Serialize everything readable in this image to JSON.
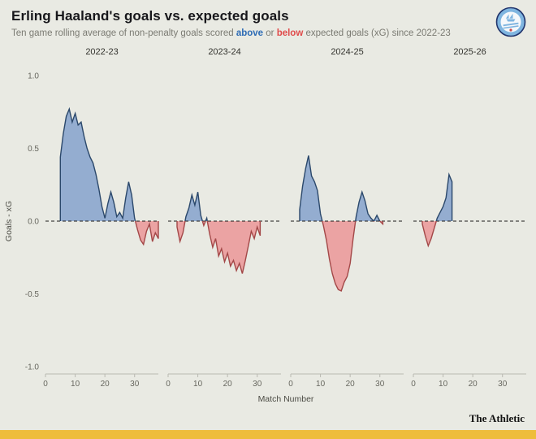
{
  "header": {
    "title": "Erling Haaland's goals vs. expected goals",
    "subtitle": {
      "pre": "Ten game rolling average of non-penalty goals scored ",
      "above_word": "above",
      "mid": " or ",
      "below_word": "below",
      "post": " expected goals (xG) since 2022-23"
    }
  },
  "badge": {
    "icon": "man-city-crest"
  },
  "branding": {
    "wordmark": "The Athletic"
  },
  "colors": {
    "above_text": "#2e6cb5",
    "below_text": "#e04b4b",
    "fill_above": "#94add0",
    "fill_below": "#eba3a3",
    "stroke_above": "#2b486b",
    "stroke_below": "#a34848",
    "accent_bar": "#eebd3b",
    "zero_line": "#1a1a1a",
    "axis_line": "#b9b9b1"
  },
  "chart_data": {
    "type": "area",
    "title": "Erling Haaland's goals vs. expected goals",
    "xlabel": "Match Number",
    "ylabel": "Goals - xG",
    "ylim": [
      -1.0,
      1.0
    ],
    "xlim": [
      0,
      38
    ],
    "x_ticks": [
      0,
      10,
      20,
      30
    ],
    "y_ticks": [
      1.0,
      0.5,
      0.0,
      -0.5,
      -1.0
    ],
    "zero_line_style": "dashed",
    "legend": "blue = above xG, red = below xG",
    "facets": [
      {
        "label": "2022-23",
        "points": [
          [
            5,
            0.44
          ],
          [
            6,
            0.6
          ],
          [
            7,
            0.72
          ],
          [
            8,
            0.77
          ],
          [
            9,
            0.68
          ],
          [
            10,
            0.74
          ],
          [
            11,
            0.66
          ],
          [
            12,
            0.68
          ],
          [
            13,
            0.58
          ],
          [
            14,
            0.5
          ],
          [
            15,
            0.44
          ],
          [
            16,
            0.4
          ],
          [
            17,
            0.32
          ],
          [
            18,
            0.22
          ],
          [
            19,
            0.1
          ],
          [
            20,
            0.02
          ],
          [
            21,
            0.12
          ],
          [
            22,
            0.2
          ],
          [
            23,
            0.13
          ],
          [
            24,
            0.03
          ],
          [
            25,
            0.06
          ],
          [
            26,
            0.02
          ],
          [
            27,
            0.16
          ],
          [
            28,
            0.27
          ],
          [
            29,
            0.18
          ],
          [
            30,
            0.02
          ],
          [
            31,
            -0.06
          ],
          [
            32,
            -0.13
          ],
          [
            33,
            -0.16
          ],
          [
            34,
            -0.07
          ],
          [
            35,
            -0.02
          ],
          [
            36,
            -0.14
          ],
          [
            37,
            -0.08
          ],
          [
            38,
            -0.12
          ]
        ]
      },
      {
        "label": "2023-24",
        "points": [
          [
            3,
            -0.04
          ],
          [
            4,
            -0.14
          ],
          [
            5,
            -0.08
          ],
          [
            6,
            0.03
          ],
          [
            7,
            0.09
          ],
          [
            8,
            0.18
          ],
          [
            9,
            0.11
          ],
          [
            10,
            0.2
          ],
          [
            11,
            0.04
          ],
          [
            12,
            -0.03
          ],
          [
            13,
            0.02
          ],
          [
            14,
            -0.09
          ],
          [
            15,
            -0.18
          ],
          [
            16,
            -0.12
          ],
          [
            17,
            -0.24
          ],
          [
            18,
            -0.19
          ],
          [
            19,
            -0.28
          ],
          [
            20,
            -0.22
          ],
          [
            21,
            -0.31
          ],
          [
            22,
            -0.27
          ],
          [
            23,
            -0.34
          ],
          [
            24,
            -0.29
          ],
          [
            25,
            -0.36
          ],
          [
            26,
            -0.27
          ],
          [
            27,
            -0.17
          ],
          [
            28,
            -0.07
          ],
          [
            29,
            -0.12
          ],
          [
            30,
            -0.04
          ],
          [
            31,
            -0.1
          ]
        ]
      },
      {
        "label": "2024-25",
        "points": [
          [
            3,
            0.08
          ],
          [
            4,
            0.24
          ],
          [
            5,
            0.36
          ],
          [
            6,
            0.45
          ],
          [
            7,
            0.31
          ],
          [
            8,
            0.27
          ],
          [
            9,
            0.21
          ],
          [
            10,
            0.05
          ],
          [
            11,
            -0.03
          ],
          [
            12,
            -0.13
          ],
          [
            13,
            -0.26
          ],
          [
            14,
            -0.36
          ],
          [
            15,
            -0.43
          ],
          [
            16,
            -0.47
          ],
          [
            17,
            -0.48
          ],
          [
            18,
            -0.42
          ],
          [
            19,
            -0.38
          ],
          [
            20,
            -0.29
          ],
          [
            21,
            -0.12
          ],
          [
            22,
            0.03
          ],
          [
            23,
            0.13
          ],
          [
            24,
            0.2
          ],
          [
            25,
            0.14
          ],
          [
            26,
            0.05
          ],
          [
            27,
            0.02
          ],
          [
            28,
            0.0
          ],
          [
            29,
            0.04
          ],
          [
            30,
            0.0
          ],
          [
            31,
            -0.02
          ]
        ]
      },
      {
        "label": "2025-26",
        "points": [
          [
            3,
            -0.02
          ],
          [
            4,
            -0.1
          ],
          [
            5,
            -0.17
          ],
          [
            6,
            -0.12
          ],
          [
            7,
            -0.05
          ],
          [
            8,
            0.02
          ],
          [
            9,
            0.06
          ],
          [
            10,
            0.1
          ],
          [
            11,
            0.16
          ],
          [
            12,
            0.32
          ],
          [
            13,
            0.27
          ]
        ]
      }
    ]
  }
}
